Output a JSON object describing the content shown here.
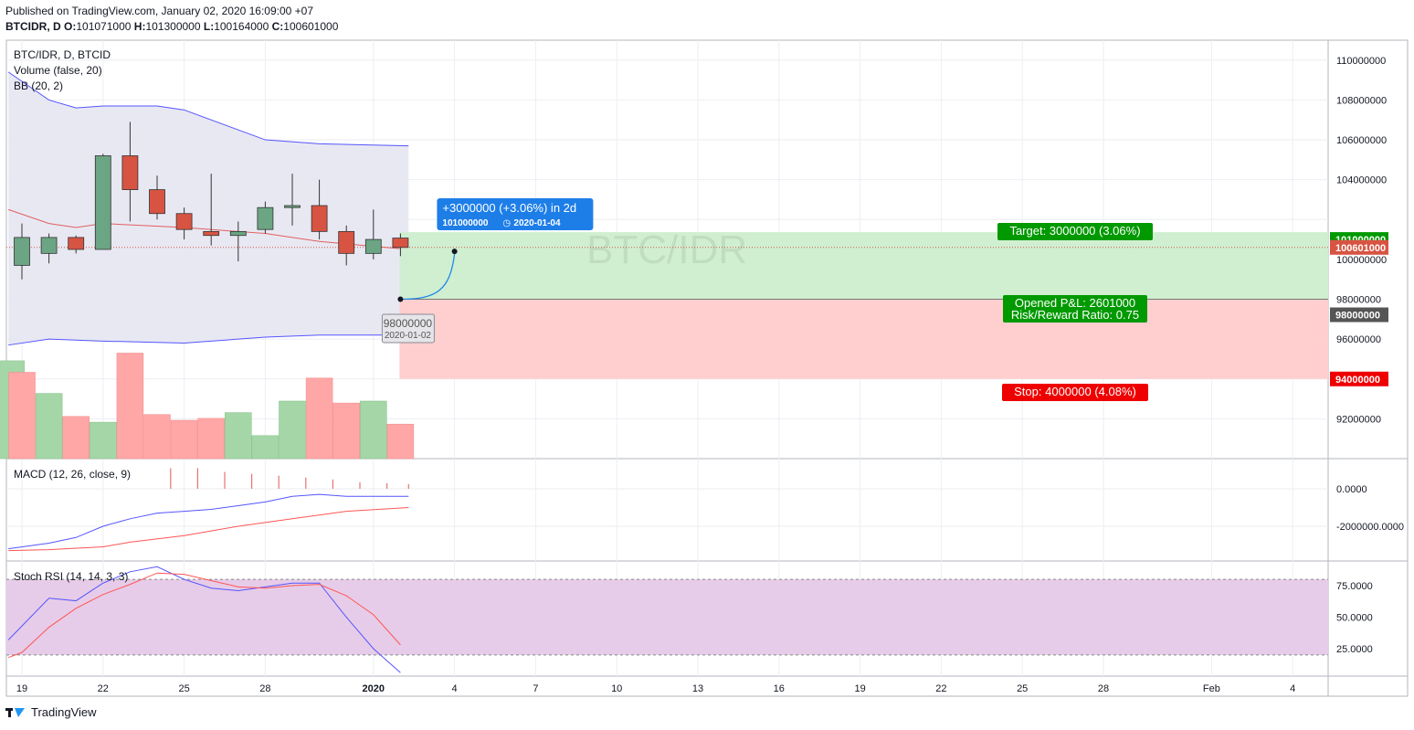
{
  "header": {
    "published": "Published on TradingView.com, January 02, 2020 16:09:00 +07",
    "symbol": "BTCIDR, D",
    "o_label": "O:",
    "o": "101071000",
    "h_label": "H:",
    "h": "101300000",
    "l_label": "L:",
    "l": "100164000",
    "c_label": "C:",
    "c": "100601000"
  },
  "footer": {
    "brand": "TradingView"
  },
  "colors": {
    "up": "#6ba583",
    "down": "#d75442",
    "bb": "#5555ff",
    "bbfill": "#e6e6f2",
    "target": "#009900",
    "stop": "#ee0000",
    "macd": "#5555ff",
    "signal": "#ff5555",
    "rsi_k": "#5555ff",
    "rsi_d": "#ff5555",
    "rsi_band": "#e6cce8",
    "callout": "#1e7ee8"
  },
  "chart_data": {
    "type": "candlestick",
    "title": "BTC/IDR, D, BTCID",
    "watermark": "BTC/IDR",
    "x_tick_labels": [
      "19",
      "22",
      "25",
      "28",
      "2020",
      "4",
      "7",
      "10",
      "13",
      "16",
      "19",
      "22",
      "25",
      "28",
      "Feb",
      "4"
    ],
    "x_tick_days": [
      0,
      3,
      6,
      9,
      13,
      16,
      19,
      22,
      25,
      28,
      31,
      34,
      37,
      40,
      44,
      47
    ],
    "price_axis": {
      "min": 90000000,
      "max": 111000000,
      "ticks": [
        "110000000",
        "108000000",
        "106000000",
        "104000000",
        "101000000",
        "100601000",
        "100000000",
        "98000000",
        "98000000",
        "96000000",
        "94000000",
        "92000000"
      ]
    },
    "candles": [
      {
        "day": 0,
        "date": "2019-12-19",
        "open": 99700000,
        "high": 101800000,
        "low": 99000000,
        "close": 101100000
      },
      {
        "day": 1,
        "date": "2019-12-20",
        "open": 100300000,
        "high": 101300000,
        "low": 99800000,
        "close": 101100000
      },
      {
        "day": 2,
        "date": "2019-12-21",
        "open": 101100000,
        "high": 101200000,
        "low": 100300000,
        "close": 100500000
      },
      {
        "day": 3,
        "date": "2019-12-22",
        "open": 100500000,
        "high": 105300000,
        "low": 100500000,
        "close": 105200000
      },
      {
        "day": 4,
        "date": "2019-12-23",
        "open": 105200000,
        "high": 106900000,
        "low": 101900000,
        "close": 103500000
      },
      {
        "day": 5,
        "date": "2019-12-24",
        "open": 103500000,
        "high": 104200000,
        "low": 102000000,
        "close": 102300000
      },
      {
        "day": 6,
        "date": "2019-12-25",
        "open": 102300000,
        "high": 102600000,
        "low": 101000000,
        "close": 101500000
      },
      {
        "day": 7,
        "date": "2019-12-26",
        "open": 101400000,
        "high": 104300000,
        "low": 100700000,
        "close": 101200000
      },
      {
        "day": 8,
        "date": "2019-12-27",
        "open": 101200000,
        "high": 101900000,
        "low": 99900000,
        "close": 101400000
      },
      {
        "day": 9,
        "date": "2019-12-28",
        "open": 101500000,
        "high": 102900000,
        "low": 101300000,
        "close": 102600000
      },
      {
        "day": 10,
        "date": "2019-12-29",
        "open": 102600000,
        "high": 104300000,
        "low": 101700000,
        "close": 102700000
      },
      {
        "day": 11,
        "date": "2019-12-30",
        "open": 102700000,
        "high": 104000000,
        "low": 101000000,
        "close": 101400000
      },
      {
        "day": 12,
        "date": "2019-12-31",
        "open": 101400000,
        "high": 101700000,
        "low": 99700000,
        "close": 100300000
      },
      {
        "day": 13,
        "date": "2020-01-01",
        "open": 100300000,
        "high": 102500000,
        "low": 100000000,
        "close": 101000000
      },
      {
        "day": 14,
        "date": "2020-01-02",
        "open": 101071000,
        "high": 101300000,
        "low": 100164000,
        "close": 100601000
      }
    ],
    "volume": {
      "label": "Volume (false, 20)",
      "values": [
        {
          "day": -0.4,
          "v": 0.51,
          "up": true
        },
        {
          "day": 0,
          "v": 0.45,
          "up": false
        },
        {
          "day": 1,
          "v": 0.34,
          "up": true
        },
        {
          "day": 2,
          "v": 0.22,
          "up": false
        },
        {
          "day": 3,
          "v": 0.19,
          "up": true
        },
        {
          "day": 4,
          "v": 0.55,
          "up": false
        },
        {
          "day": 5,
          "v": 0.23,
          "up": false
        },
        {
          "day": 6,
          "v": 0.2,
          "up": false
        },
        {
          "day": 7,
          "v": 0.21,
          "up": false
        },
        {
          "day": 8,
          "v": 0.24,
          "up": true
        },
        {
          "day": 9,
          "v": 0.12,
          "up": true
        },
        {
          "day": 10,
          "v": 0.3,
          "up": true
        },
        {
          "day": 11,
          "v": 0.42,
          "up": false
        },
        {
          "day": 12,
          "v": 0.29,
          "up": false
        },
        {
          "day": 13,
          "v": 0.3,
          "up": true
        },
        {
          "day": 14,
          "v": 0.18,
          "up": false
        }
      ]
    },
    "bollinger": {
      "label": "BB (20, 2)",
      "upper": [
        [
          -0.5,
          109400000
        ],
        [
          1,
          108000000
        ],
        [
          2,
          107600000
        ],
        [
          3,
          107700000
        ],
        [
          5,
          107700000
        ],
        [
          6,
          107500000
        ],
        [
          9,
          106000000
        ],
        [
          11,
          105800000
        ],
        [
          14.3,
          105700000
        ]
      ],
      "middle": [
        [
          -0.5,
          102500000
        ],
        [
          1,
          101800000
        ],
        [
          2,
          101600000
        ],
        [
          3,
          101800000
        ],
        [
          6,
          101600000
        ],
        [
          9,
          101300000
        ],
        [
          11,
          100900000
        ],
        [
          14.3,
          100500000
        ]
      ],
      "lower": [
        [
          -0.5,
          95700000
        ],
        [
          1,
          96000000
        ],
        [
          3,
          95900000
        ],
        [
          6,
          95800000
        ],
        [
          9,
          96100000
        ],
        [
          11,
          96200000
        ],
        [
          14.3,
          96200000
        ]
      ]
    },
    "last_price": 100601000,
    "position": {
      "entry_price": 98000000,
      "entry_date": "2020-01-02",
      "entry_day": 14,
      "target_price": 101000000,
      "stop_price": 94000000,
      "end_day": 49,
      "target_label": "Target: 3000000 (3.06%)",
      "stop_label": "Stop: 4000000 (4.08%)",
      "pnl_label": "Opened P&L: 2601000",
      "rr_label": "Risk/Reward Ratio: 0.75"
    },
    "projection": {
      "from_day": 14,
      "from_price": 98000000,
      "to_day": 16,
      "to_price": 101000000,
      "label": "+3000000 (+3.06%) in 2d",
      "price": "101000000",
      "date": "2020-01-04",
      "start_price": "98000000",
      "start_date": "2020-01-02"
    },
    "macd": {
      "label": "MACD (12, 26, close, 9)",
      "ticks": [
        "0.0000",
        "-2000000.0000"
      ],
      "macd": [
        [
          -0.5,
          -3200000
        ],
        [
          1,
          -2900000
        ],
        [
          2,
          -2600000
        ],
        [
          3,
          -2000000
        ],
        [
          4,
          -1600000
        ],
        [
          5,
          -1300000
        ],
        [
          6,
          -1200000
        ],
        [
          7,
          -1100000
        ],
        [
          8,
          -900000
        ],
        [
          9,
          -700000
        ],
        [
          10,
          -400000
        ],
        [
          11,
          -300000
        ],
        [
          12,
          -400000
        ],
        [
          14.3,
          -400000
        ]
      ],
      "signal": [
        [
          -0.5,
          -3300000
        ],
        [
          1,
          -3250000
        ],
        [
          3,
          -3100000
        ],
        [
          4,
          -2850000
        ],
        [
          6,
          -2500000
        ],
        [
          8,
          -2000000
        ],
        [
          10,
          -1600000
        ],
        [
          12,
          -1200000
        ],
        [
          14.3,
          -1000000
        ]
      ],
      "hist": [
        [
          5.5,
          1100000
        ],
        [
          6.5,
          1100000
        ],
        [
          7.5,
          900000
        ],
        [
          8.5,
          800000
        ],
        [
          9.5,
          700000
        ],
        [
          10.5,
          600000
        ],
        [
          11.5,
          500000
        ],
        [
          12.5,
          350000
        ],
        [
          13.5,
          300000
        ],
        [
          14.3,
          250000
        ]
      ]
    },
    "stoch_rsi": {
      "label": "Stoch RSI (14, 14, 3, 3)",
      "ticks": [
        "75.0000",
        "50.0000",
        "25.0000"
      ],
      "upper_band": 80,
      "lower_band": 20,
      "k": [
        [
          -0.5,
          32
        ],
        [
          1,
          65
        ],
        [
          2,
          63
        ],
        [
          3,
          77
        ],
        [
          4,
          86
        ],
        [
          5,
          90
        ],
        [
          6,
          80
        ],
        [
          7,
          73
        ],
        [
          8,
          71
        ],
        [
          9,
          74
        ],
        [
          10,
          77
        ],
        [
          11,
          77
        ],
        [
          12,
          50
        ],
        [
          13,
          25
        ],
        [
          14,
          6
        ]
      ],
      "d": [
        [
          -0.5,
          18
        ],
        [
          0,
          22
        ],
        [
          1,
          42
        ],
        [
          2,
          57
        ],
        [
          3,
          68
        ],
        [
          4,
          76
        ],
        [
          5,
          85
        ],
        [
          6,
          84
        ],
        [
          7,
          79
        ],
        [
          8,
          74
        ],
        [
          9,
          73
        ],
        [
          10,
          75
        ],
        [
          11,
          76
        ],
        [
          12,
          67
        ],
        [
          13,
          52
        ],
        [
          14,
          28
        ]
      ]
    }
  }
}
